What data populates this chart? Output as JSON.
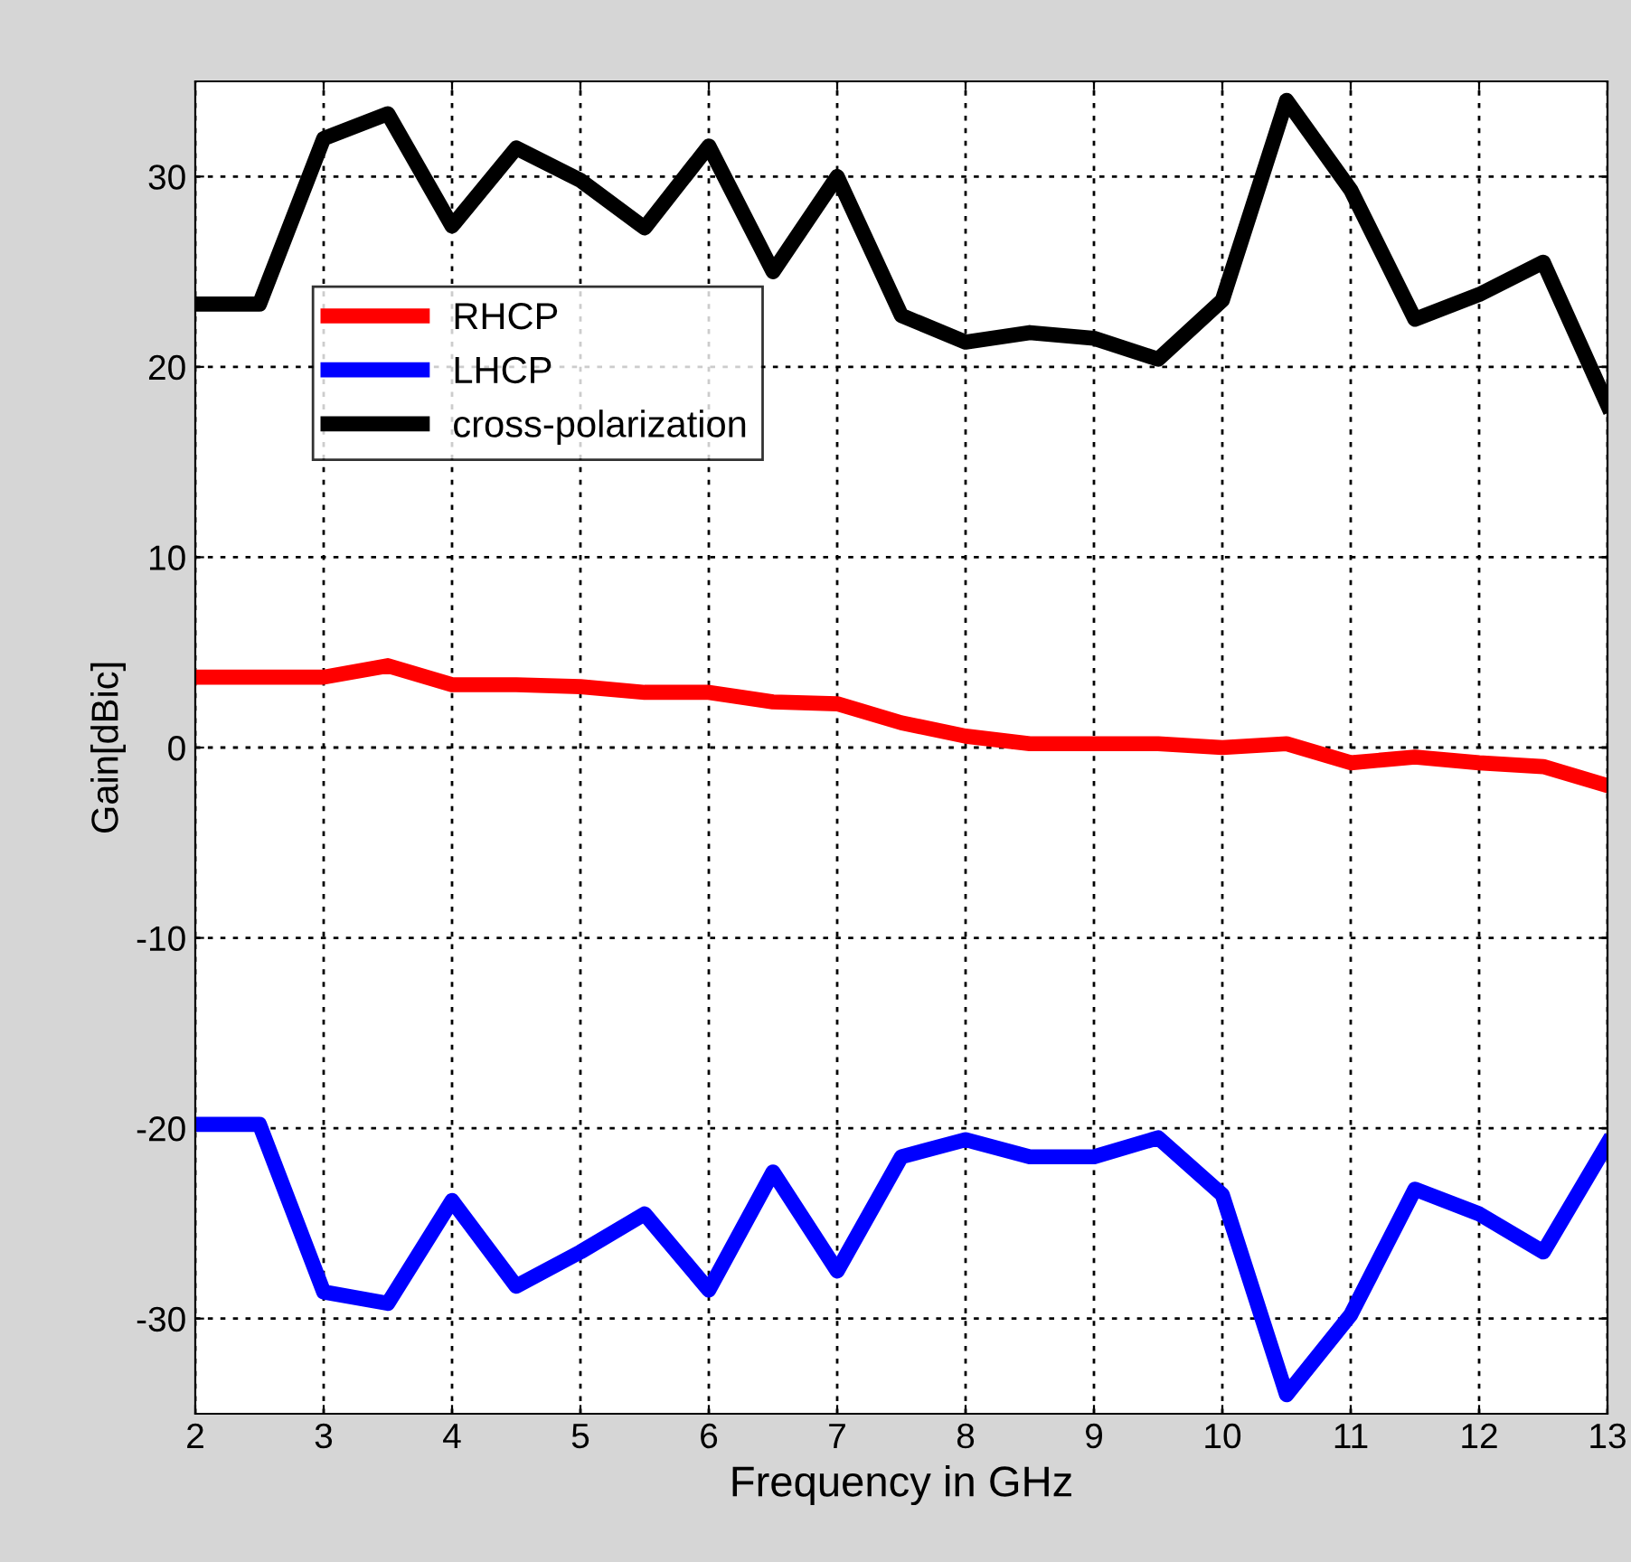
{
  "chart_data": {
    "type": "line",
    "xlabel": "Frequency in GHz",
    "ylabel": "Gain[dBic]",
    "x": [
      2,
      2.5,
      3,
      3.5,
      4,
      4.5,
      5,
      5.5,
      6,
      6.5,
      7,
      7.5,
      8,
      8.5,
      9,
      9.5,
      10,
      10.5,
      11,
      11.5,
      12,
      12.5,
      13
    ],
    "series": [
      {
        "name": "RHCP",
        "color": "#ff0000",
        "values": [
          3.7,
          3.7,
          3.7,
          4.3,
          3.3,
          3.3,
          3.2,
          2.9,
          2.9,
          2.4,
          2.3,
          1.3,
          0.6,
          0.2,
          0.2,
          0.2,
          0,
          0.2,
          -0.8,
          -0.5,
          -0.8,
          -1,
          -2
        ]
      },
      {
        "name": "LHCP",
        "color": "#0000ff",
        "values": [
          -19.8,
          -19.8,
          -28.6,
          -29.2,
          -23.8,
          -28.3,
          -26.5,
          -24.5,
          -28.5,
          -22.3,
          -27.5,
          -21.5,
          -20.6,
          -21.5,
          -21.5,
          -20.5,
          -23.5,
          -34,
          -29.8,
          -23.2,
          -24.5,
          -26.5,
          -20.8
        ]
      },
      {
        "name": "cross-polarization",
        "color": "#000000",
        "values": [
          23.3,
          23.3,
          32,
          33.3,
          27.4,
          31.5,
          29.8,
          27.3,
          31.6,
          25,
          30,
          22.7,
          21.3,
          21.8,
          21.5,
          20.4,
          23.5,
          34,
          29.3,
          22.5,
          23.8,
          25.5,
          18
        ]
      }
    ],
    "xlim": [
      2,
      13
    ],
    "xticks": [
      2,
      3,
      4,
      5,
      6,
      7,
      8,
      9,
      10,
      11,
      12,
      13
    ],
    "ylim": [
      -35,
      35
    ],
    "yticks": [
      -30,
      -20,
      -10,
      0,
      10,
      20,
      30
    ],
    "grid": true,
    "legend": "top left",
    "marker": "none",
    "line_style": "solid"
  }
}
